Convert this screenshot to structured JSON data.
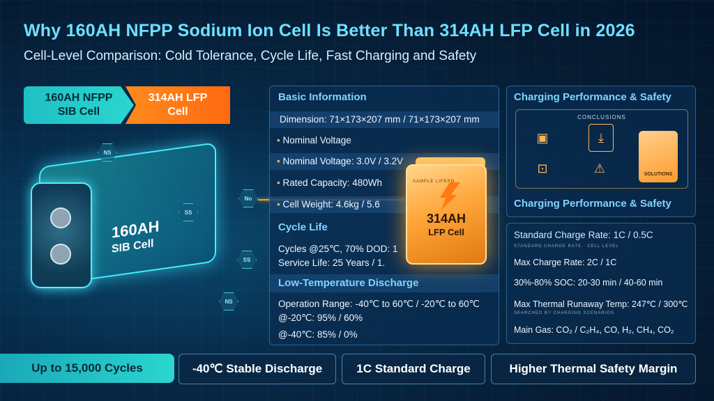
{
  "title": "Why 160AH NFPP Sodium Ion Cell Is Better Than 314AH LFP Cell in 2026",
  "subtitle": "Cell-Level Comparison: Cold Tolerance, Cycle Life, Fast Charging and Safety",
  "tags": {
    "sib": [
      "160AH NFPP",
      "SIB Cell"
    ],
    "lfp": [
      "314AH LFP",
      "Cell"
    ]
  },
  "basic": {
    "heading": "Basic Information",
    "rows": [
      "Dimension: 71×173×207 mm / 71×173×207 mm",
      "Nominal Voltage",
      "Nominal Voltage: 3.0V / 3.2V",
      "Rated Capacity: 480Wh",
      "Cell Weight: 4.6kg / 5.6"
    ]
  },
  "cycle": {
    "heading": "Cycle Life",
    "rows": [
      "Cycles @25℃, 70% DOD: 1",
      "Service Life: 25 Years / 1."
    ]
  },
  "low_temp": {
    "heading": "Low-Temperature Discharge",
    "rows": [
      "Operation Range: -40℃ to 60℃ / -20℃ to 60℃",
      "@-20℃: 95% / 60%",
      "@-40℃: 85% / 0%"
    ]
  },
  "charging_top": {
    "heading": "Charging Performance & Safety",
    "conclusions": "CONCLUSIONS",
    "card_text": "SOLUTIONS",
    "footer": "Charging Performance & Safety"
  },
  "charging": {
    "rows": [
      "Standard Charge Rate: 1C / 0.5C",
      "Max Charge Rate: 2C / 1C",
      "30%-80% SOC: 20-30 min / 40-60 min",
      "Max Thermal Runaway Temp: 247℃ / 300℃",
      "Main Gas: CO₂ / C₂H₄, CO, H₂, CH₄, CO₂"
    ]
  },
  "sib_cell": {
    "line1": "160AH",
    "line2": "SIB Cell"
  },
  "lfp_cell": {
    "line1": "314AH",
    "line2": "LFP Cell",
    "small": "SAMPLE LIFEPO"
  },
  "hex_labels": [
    "NS",
    "SS",
    "NS",
    "SS",
    "No"
  ],
  "bottom": [
    "Up to 15,000 Cycles",
    "-40℃ Stable Discharge",
    "1C Standard Charge",
    "Higher Thermal Safety Margin"
  ],
  "colors": {
    "accent_cyan": "#2ad6cf",
    "accent_orange": "#ff8a1e",
    "heading": "#7fd4ff"
  }
}
